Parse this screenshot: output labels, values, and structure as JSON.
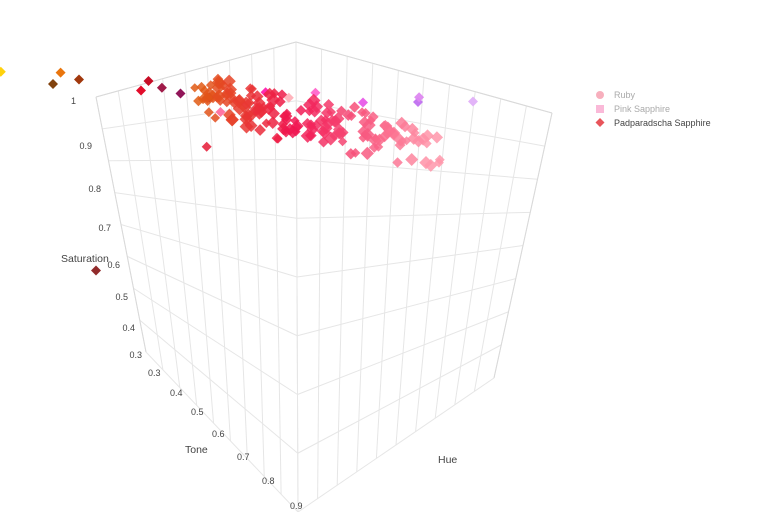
{
  "chart_data": {
    "type": "scatter",
    "subtype": "3d-scatter",
    "axes": {
      "hue": {
        "label": "Hue"
      },
      "tone": {
        "label": "Tone",
        "ticks": [
          "0.3",
          "0.4",
          "0.5",
          "0.6",
          "0.7",
          "0.8",
          "0.9"
        ]
      },
      "saturation": {
        "label": "Saturation",
        "ticks": [
          "0.3",
          "0.4",
          "0.5",
          "0.6",
          "0.7",
          "0.8",
          "0.9",
          "1"
        ]
      }
    },
    "legend": {
      "placement": "top-right",
      "items": [
        {
          "name": "Ruby",
          "symbol": "circle",
          "color": "#f06e86",
          "visible": false
        },
        {
          "name": "Pink Sapphire",
          "symbol": "square",
          "color": "#f57fb8",
          "visible": false
        },
        {
          "name": "Padparadscha Sapphire",
          "symbol": "diamond",
          "color": "#e8545a",
          "visible": true
        }
      ]
    },
    "series": [
      {
        "name": "Padparadscha Sapphire",
        "marker": "diamond",
        "points": [
          {
            "tone": 0.25,
            "saturation": 1.0,
            "hue": "0.02",
            "color": "#7a3800"
          },
          {
            "tone": 0.3,
            "saturation": 1.0,
            "hue": "0.02",
            "color": "#9c2d00"
          },
          {
            "tone": 0.3,
            "saturation": 1.0,
            "hue": "0.93",
            "color": "#4b0082"
          },
          {
            "tone": 0.3,
            "saturation": 1.0,
            "hue": "0.95",
            "color": "#8b0a50"
          },
          {
            "tone": 0.32,
            "saturation": 1.0,
            "hue": "0.97",
            "color": "#9b0f3f"
          },
          {
            "tone": 0.35,
            "saturation": 0.97,
            "hue": "0.09",
            "color": "#ffd000"
          },
          {
            "tone": 0.35,
            "saturation": 0.99,
            "hue": "0.05",
            "color": "#e86e00"
          },
          {
            "tone": 0.35,
            "saturation": 1.0,
            "hue": "0.99",
            "color": "#c4001a"
          },
          {
            "tone": 0.38,
            "saturation": 1.0,
            "hue": "0.92",
            "color": "#ff1fb0"
          },
          {
            "tone": 0.4,
            "saturation": 1.0,
            "hue": "0.86",
            "color": "#e85ae8"
          },
          {
            "tone": 0.42,
            "saturation": 1.0,
            "hue": "0.90",
            "color": "#ff66cc"
          },
          {
            "tone": 0.45,
            "saturation": 1.0,
            "hue": "0.84",
            "color": "#c070f0"
          },
          {
            "tone": 0.48,
            "saturation": 1.0,
            "hue": "0.85",
            "color": "#dd88f0"
          },
          {
            "tone": 0.5,
            "saturation": 1.0,
            "hue": "0.82",
            "color": "#e0b0f8"
          },
          {
            "tone": 0.4,
            "saturation": 0.95,
            "hue": "0.01",
            "color": "#e00020"
          },
          {
            "tone": 0.45,
            "saturation": 0.9,
            "hue": "0.97",
            "color": "#ff70a0"
          },
          {
            "tone": 0.55,
            "saturation": 0.92,
            "hue": "0.96",
            "color": "#ffb0b8"
          },
          {
            "tone": 0.5,
            "saturation": 0.78,
            "hue": "0.99",
            "color": "#e8304a"
          },
          {
            "tone": 0.4,
            "saturation": 0.45,
            "hue": "0.01",
            "color": "#8b2020"
          }
        ]
      }
    ]
  }
}
